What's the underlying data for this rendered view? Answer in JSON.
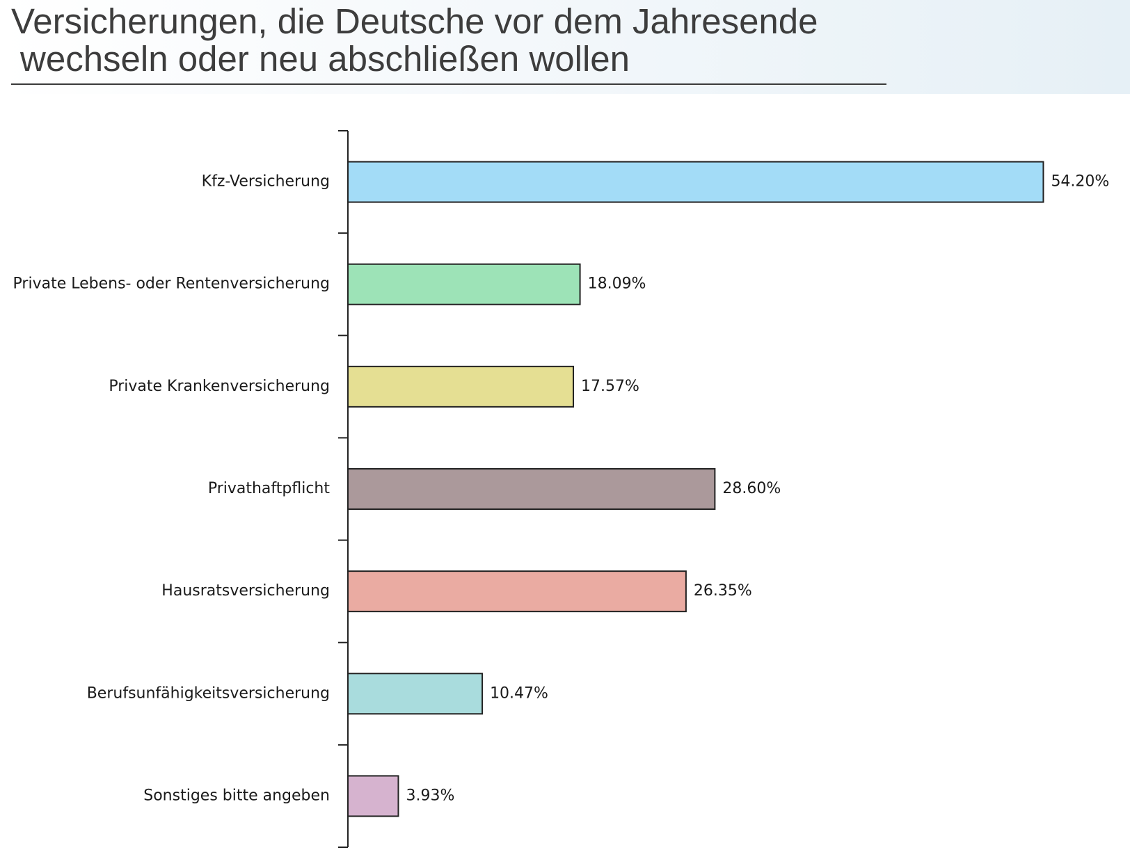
{
  "title": {
    "line1": "Versicherungen, die Deutsche vor dem Jahresende",
    "line2": "wechseln oder neu abschließen wollen"
  },
  "chart_data": {
    "type": "bar",
    "orientation": "horizontal",
    "title": "Versicherungen, die Deutsche vor dem Jahresende wechseln oder neu abschließen wollen",
    "categories": [
      "Kfz-Versicherung",
      "Private Lebens- oder Rentenversicherung",
      "Private Krankenversicherung",
      "Privathaftpflicht",
      "Hausratsversicherung",
      "Berufsunfähigkeitsversicherung",
      "Sonstiges bitte angeben"
    ],
    "values": [
      54.2,
      18.09,
      17.57,
      28.6,
      26.35,
      10.47,
      3.93
    ],
    "value_labels": [
      "54.20%",
      "18.09%",
      "17.57%",
      "28.60%",
      "26.35%",
      "10.47%",
      "3.93%"
    ],
    "unit": "%",
    "colors": [
      "#a3dcf7",
      "#9de3b7",
      "#e5df93",
      "#ab999b",
      "#eaaba2",
      "#a9dcdd",
      "#d6b3cf"
    ],
    "bar_border_color": "#222222",
    "xlabel": "",
    "ylabel": "",
    "grid": false,
    "legend": false
  }
}
